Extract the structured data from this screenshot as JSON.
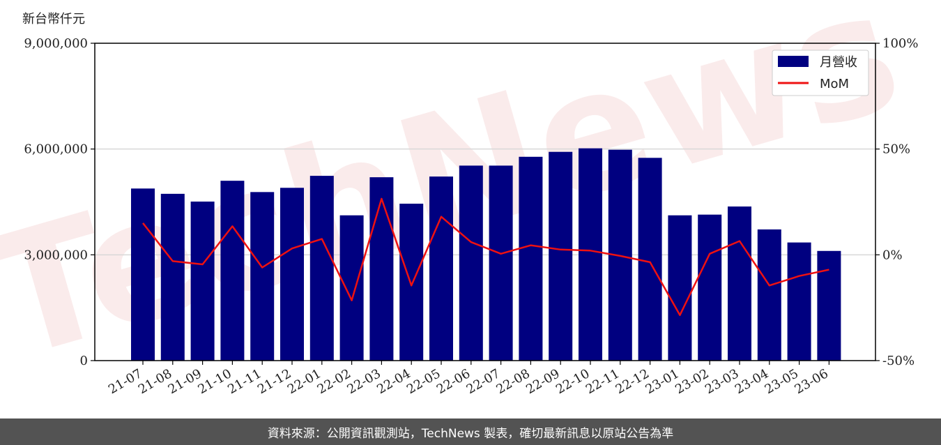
{
  "chart_data": {
    "type": "bar",
    "unit_label": "新台幣仟元",
    "categories": [
      "21-07",
      "21-08",
      "21-09",
      "21-10",
      "21-11",
      "21-12",
      "22-01",
      "22-02",
      "22-03",
      "22-04",
      "22-05",
      "22-06",
      "22-07",
      "22-08",
      "22-09",
      "22-10",
      "22-11",
      "22-12",
      "23-01",
      "23-02",
      "23-03",
      "23-04",
      "23-05",
      "23-06"
    ],
    "series": [
      {
        "name": "月營收",
        "type": "bar",
        "axis": "left",
        "color": "#000080",
        "values": [
          4880000,
          4730000,
          4510000,
          5100000,
          4780000,
          4900000,
          5240000,
          4120000,
          5200000,
          4450000,
          5220000,
          5530000,
          5530000,
          5780000,
          5920000,
          6020000,
          5980000,
          5750000,
          4120000,
          4140000,
          4370000,
          3720000,
          3350000,
          3110000
        ]
      },
      {
        "name": "MoM",
        "type": "line",
        "axis": "right",
        "color": "#ee1111",
        "values": [
          15.0,
          -3.0,
          -4.5,
          13.5,
          -6.0,
          3.0,
          7.5,
          -21.5,
          26.5,
          -14.5,
          18.0,
          6.0,
          0.5,
          4.5,
          2.5,
          2.0,
          -0.5,
          -3.5,
          -28.5,
          0.5,
          6.5,
          -14.5,
          -10.0,
          -7.0
        ]
      }
    ],
    "y_left": {
      "ylim": [
        0,
        9000000
      ],
      "ticks": [
        0,
        3000000,
        6000000,
        9000000
      ],
      "tick_labels": [
        "0",
        "3,000,000",
        "6,000,000",
        "9,000,000"
      ]
    },
    "y_right": {
      "ylim": [
        -50,
        100
      ],
      "ticks": [
        -50,
        0,
        50,
        100
      ],
      "tick_labels": [
        "-50%",
        "0%",
        "50%",
        "100%"
      ]
    },
    "grid": "horizontal",
    "legend": {
      "position": "top-right",
      "entries": [
        "月營收",
        "MoM"
      ]
    }
  },
  "watermark": "TechNews",
  "footer": {
    "text": "資料來源：公開資訊觀測站，TechNews 製表，確切最新訊息以原站公告為準"
  }
}
